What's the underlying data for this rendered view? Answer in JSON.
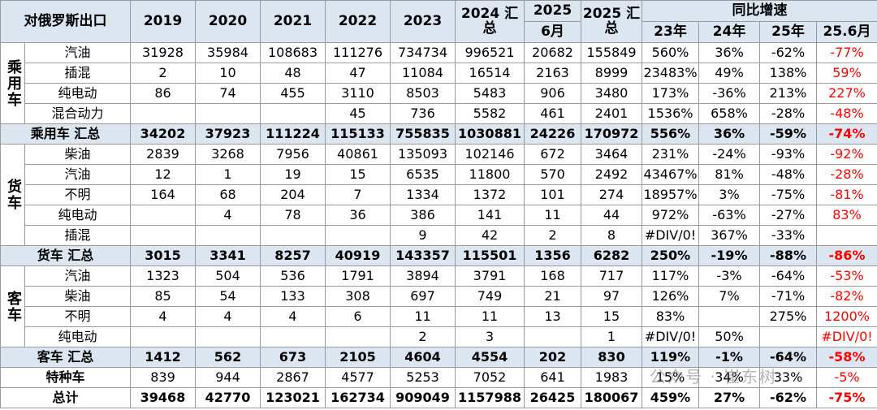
{
  "header": {
    "corner": "对俄罗斯出口",
    "years": [
      "2019",
      "2020",
      "2021",
      "2022",
      "2023",
      "2024 汇总"
    ],
    "m2025_top": "2025",
    "m2025_bottom": "6月",
    "total2025": "2025 汇总",
    "growth_title": "同比增速",
    "growth": [
      "23年",
      "24年",
      "25年",
      "25.6月"
    ]
  },
  "groups": [
    {
      "label": "乘用车",
      "rows": [
        {
          "label": "汽油",
          "cells": [
            "31928",
            "35984",
            "108683",
            "111276",
            "734734",
            "996521",
            "20682",
            "155849",
            "560%",
            "36%",
            "-62%",
            "-77%"
          ]
        },
        {
          "label": "插混",
          "cells": [
            "2",
            "10",
            "48",
            "47",
            "11084",
            "16514",
            "2163",
            "8999",
            "23483%",
            "49%",
            "138%",
            "59%"
          ]
        },
        {
          "label": "纯电动",
          "cells": [
            "86",
            "74",
            "455",
            "3110",
            "8503",
            "5483",
            "906",
            "3480",
            "173%",
            "-36%",
            "213%",
            "227%"
          ]
        },
        {
          "label": "混合动力",
          "cells": [
            null,
            null,
            null,
            "45",
            "736",
            "5582",
            "461",
            "2401",
            "1536%",
            "658%",
            "-28%",
            "-48%"
          ]
        }
      ],
      "total": {
        "label": "乘用车 汇总",
        "cells": [
          "34202",
          "37923",
          "111224",
          "115133",
          "755835",
          "1030881",
          "24226",
          "170972",
          "556%",
          "36%",
          "-59%",
          "-74%"
        ]
      }
    },
    {
      "label": "货车",
      "rows": [
        {
          "label": "柴油",
          "cells": [
            "2839",
            "3268",
            "7956",
            "40861",
            "135093",
            "102146",
            "672",
            "3464",
            "231%",
            "-24%",
            "-93%",
            "-92%"
          ]
        },
        {
          "label": "汽油",
          "cells": [
            "12",
            "1",
            "19",
            "15",
            "6535",
            "11800",
            "570",
            "2492",
            "43467%",
            "81%",
            "-48%",
            "-28%"
          ]
        },
        {
          "label": "不明",
          "cells": [
            "164",
            "68",
            "204",
            "7",
            "1334",
            "1372",
            "101",
            "274",
            "18957%",
            "3%",
            "-75%",
            "-81%"
          ]
        },
        {
          "label": "纯电动",
          "cells": [
            null,
            "4",
            "78",
            "36",
            "386",
            "141",
            "11",
            "44",
            "972%",
            "-63%",
            "-27%",
            "83%"
          ]
        },
        {
          "label": "插混",
          "cells": [
            null,
            null,
            null,
            null,
            "9",
            "42",
            "2",
            "8",
            "#DIV/0!",
            "367%",
            "-33%",
            null
          ]
        }
      ],
      "total": {
        "label": "货车 汇总",
        "cells": [
          "3015",
          "3341",
          "8257",
          "40919",
          "143357",
          "115501",
          "1356",
          "6282",
          "250%",
          "-19%",
          "-88%",
          "-86%"
        ]
      }
    },
    {
      "label": "客车",
      "rows": [
        {
          "label": "汽油",
          "cells": [
            "1323",
            "504",
            "536",
            "1791",
            "3894",
            "3791",
            "168",
            "717",
            "117%",
            "-3%",
            "-64%",
            "-53%"
          ]
        },
        {
          "label": "柴油",
          "cells": [
            "85",
            "54",
            "133",
            "308",
            "697",
            "749",
            "21",
            "97",
            "126%",
            "7%",
            "-71%",
            "-82%"
          ]
        },
        {
          "label": "不明",
          "cells": [
            "4",
            "4",
            "4",
            "6",
            "11",
            "11",
            "13",
            "15",
            "83%",
            null,
            "275%",
            "1200%"
          ]
        },
        {
          "label": "纯电动",
          "cells": [
            null,
            null,
            null,
            null,
            "2",
            "3",
            null,
            "1",
            "#DIV/0!",
            "50%",
            null,
            "#DIV/0!"
          ]
        }
      ],
      "total": {
        "label": "客车 汇总",
        "cells": [
          "1412",
          "562",
          "673",
          "2105",
          "4604",
          "4554",
          "202",
          "830",
          "119%",
          "-1%",
          "-64%",
          "-58%"
        ]
      }
    }
  ],
  "extra_rows": [
    {
      "label": "特种车",
      "bold": false,
      "cells": [
        "839",
        "944",
        "2867",
        "4577",
        "5253",
        "7052",
        "641",
        "1983",
        "15%",
        "34%",
        "33%",
        "-5%"
      ]
    },
    {
      "label": "总计",
      "bold": true,
      "cells": [
        "39468",
        "42770",
        "123021",
        "162734",
        "909049",
        "1157988",
        "26425",
        "180067",
        "459%",
        "27%",
        "-62%",
        "-75%"
      ]
    }
  ],
  "watermark": "公众号 · 崔东树"
}
